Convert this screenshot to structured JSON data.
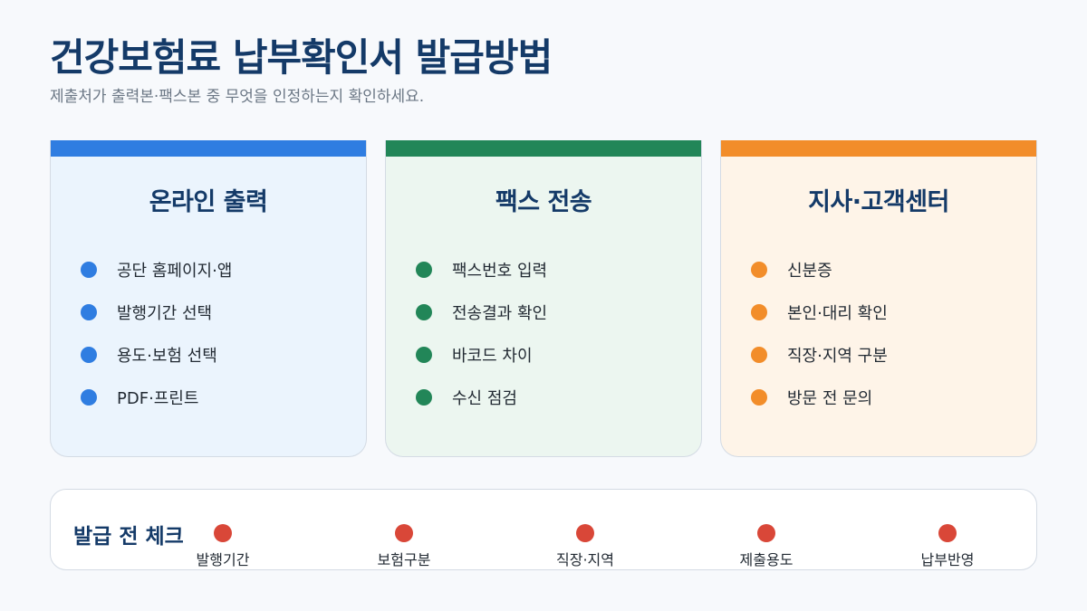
{
  "header": {
    "title": "건강보험료 납부확인서 발급방법",
    "subtitle": "제출처가 출력본·팩스본 중 무엇을 인정하는지 확인하세요."
  },
  "cards": [
    {
      "title": "온라인 출력",
      "accent": "#2f7de1",
      "items": [
        "공단 홈페이지·앱",
        "발행기간 선택",
        "용도·보험 선택",
        "PDF·프린트"
      ]
    },
    {
      "title": "팩스 전송",
      "accent": "#228658",
      "items": [
        "팩스번호 입력",
        "전송결과 확인",
        "바코드 차이",
        "수신 점검"
      ]
    },
    {
      "title": "지사·고객센터",
      "accent": "#f28d2a",
      "items": [
        "신분증",
        "본인·대리 확인",
        "직장·지역 구분",
        "방문 전 문의"
      ]
    }
  ],
  "checklist": {
    "title": "발급 전 체크",
    "dot_color": "#d94738",
    "items": [
      "발행기간",
      "보험구분",
      "직장·지역",
      "제출용도",
      "납부반영"
    ]
  }
}
